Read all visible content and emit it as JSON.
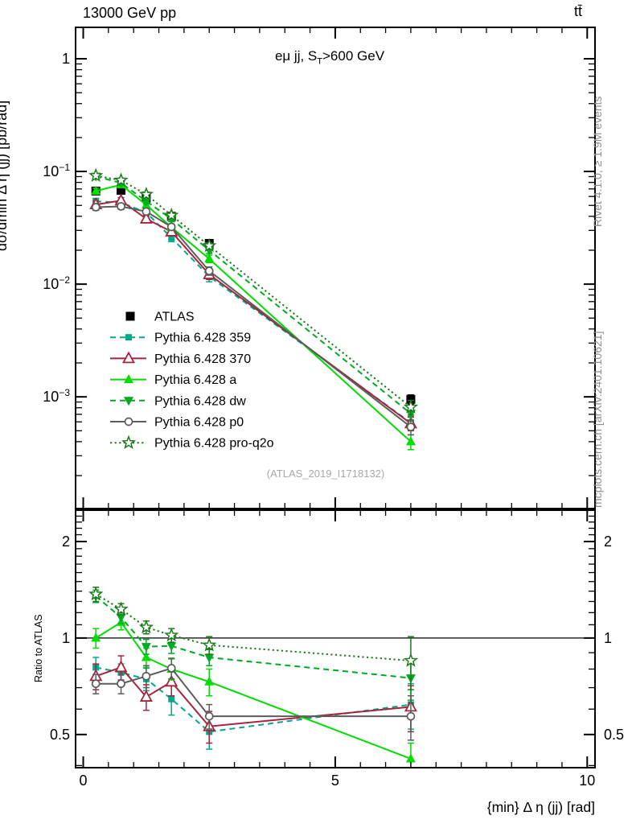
{
  "header": {
    "left": "13000 GeV pp",
    "right": "tt̄"
  },
  "title": {
    "pre": "eμ jj, S",
    "sub": "T",
    "post": ">600 GeV"
  },
  "watermark": "(ATLAS_2019_I1718132)",
  "side_notes": {
    "top": "Rivet 4.1.0, ≥ 1.9M events",
    "bottom": "mcplots.cern.ch [arXiv:2401.10621]"
  },
  "chart_data": {
    "type": "line",
    "xlabel": "{min} Δ η (jj) [rad]",
    "ylabel_main": "dσ/dmin Δ η (jj) [pb/rad]",
    "ylabel_ratio": "Ratio to ATLAS",
    "x_range": [
      -0.152,
      10.155
    ],
    "main_y_range": [
      0.000102,
      1.9
    ],
    "ratio_y_range": [
      0.394,
      2.505
    ],
    "ratio_reference": 1,
    "x_major_ticks": [
      {
        "v": 0,
        "t": "0"
      },
      {
        "v": 5,
        "t": "5"
      },
      {
        "v": 10,
        "t": "10"
      }
    ],
    "x_minor_step": 0.5,
    "main_y_ticks": [
      {
        "v": 1,
        "t": "1"
      },
      {
        "v": 0.1,
        "t": "10",
        "e": "−1"
      },
      {
        "v": 0.01,
        "t": "10",
        "e": "−2"
      },
      {
        "v": 0.001,
        "t": "10",
        "e": "−3"
      }
    ],
    "ratio_y_ticks": [
      {
        "v": 2,
        "t": "2"
      },
      {
        "v": 1,
        "t": "1"
      },
      {
        "v": 0.5,
        "t": "0.5"
      }
    ],
    "ratio_minor_ticks": [
      0.4,
      0.6,
      0.7,
      0.8,
      0.9,
      1.1,
      1.2,
      1.3,
      1.4,
      1.5,
      1.6,
      1.7,
      1.8,
      1.9,
      2.1,
      2.2,
      2.3,
      2.4,
      2.5
    ],
    "x": [
      0.25,
      0.75,
      1.25,
      1.75,
      2.5,
      6.5
    ],
    "series": [
      {
        "key": "atlas",
        "label": "ATLAS",
        "color": "#000000",
        "line": "none",
        "marker": "square",
        "y": [
          0.067,
          0.068,
          0.058,
          0.04,
          0.023,
          0.00095
        ],
        "yerr": [
          0.003,
          0.003,
          0.0028,
          0.002,
          0.0013,
          9e-05
        ]
      },
      {
        "key": "pythia-6428-359",
        "label": "Pythia 6.428 359",
        "color": "#00a98c",
        "line": "dashed",
        "marker": "square-sm",
        "y": [
          0.0543,
          0.053,
          0.0432,
          0.0258,
          0.0117,
          0.00059
        ],
        "yerr": [
          0.0035,
          0.003,
          0.0028,
          0.002,
          0.0012,
          8e-05
        ],
        "ratio": [
          0.81,
          0.78,
          0.745,
          0.645,
          0.51,
          0.62
        ],
        "ratio_err": [
          0.06,
          0.05,
          0.06,
          0.07,
          0.06,
          0.1
        ]
      },
      {
        "key": "pythia-6428-370",
        "label": "Pythia 6.428 370",
        "color": "#a3263c",
        "line": "solid",
        "marker": "triangle-open",
        "y": [
          0.0509,
          0.0551,
          0.038,
          0.0292,
          0.0122,
          0.00058
        ],
        "yerr": [
          0.0035,
          0.0035,
          0.0028,
          0.002,
          0.0012,
          8e-05
        ],
        "ratio": [
          0.76,
          0.81,
          0.655,
          0.73,
          0.53,
          0.61
        ],
        "ratio_err": [
          0.07,
          0.07,
          0.06,
          0.07,
          0.06,
          0.1
        ]
      },
      {
        "key": "pythia-6428-a",
        "label": "Pythia 6.428 a",
        "color": "#00dd00",
        "line": "solid",
        "marker": "triangle-up",
        "y": [
          0.067,
          0.0762,
          0.0505,
          0.032,
          0.0168,
          0.0004
        ],
        "yerr": [
          0.004,
          0.004,
          0.003,
          0.002,
          0.0013,
          6e-05
        ],
        "ratio": [
          1.0,
          1.12,
          0.87,
          0.8,
          0.73,
          0.42
        ],
        "ratio_err": [
          0.07,
          0.06,
          0.06,
          0.06,
          0.07,
          0.05
        ]
      },
      {
        "key": "pythia-6428-dw",
        "label": "Pythia 6.428 dw",
        "color": "#00aa22",
        "line": "dashed",
        "marker": "triangle-down",
        "y": [
          0.0905,
          0.0789,
          0.0545,
          0.0378,
          0.02,
          0.00071
        ],
        "yerr": [
          0.004,
          0.0035,
          0.003,
          0.002,
          0.0013,
          0.0001
        ],
        "ratio": [
          1.35,
          1.16,
          0.94,
          0.945,
          0.87,
          0.75
        ],
        "ratio_err": [
          0.06,
          0.05,
          0.05,
          0.05,
          0.05,
          0.11
        ]
      },
      {
        "key": "pythia-6428-p0",
        "label": "Pythia 6.428 p0",
        "color": "#5c5c5c",
        "line": "solid",
        "marker": "circle-open",
        "y": [
          0.0482,
          0.049,
          0.0441,
          0.0322,
          0.0131,
          0.00054
        ],
        "yerr": [
          0.003,
          0.003,
          0.0028,
          0.002,
          0.0011,
          8e-05
        ],
        "ratio": [
          0.72,
          0.72,
          0.76,
          0.805,
          0.57,
          0.57
        ],
        "ratio_err": [
          0.05,
          0.05,
          0.06,
          0.06,
          0.05,
          0.09
        ]
      },
      {
        "key": "pythia-6428-pro-q2o",
        "label": "Pythia 6.428 pro-q2o",
        "color": "#1d7a1d",
        "line": "dotted",
        "marker": "star-open",
        "y": [
          0.0918,
          0.0836,
          0.0626,
          0.0408,
          0.0219,
          0.00081
        ],
        "yerr": [
          0.004,
          0.0035,
          0.003,
          0.002,
          0.0013,
          0.00012
        ],
        "ratio": [
          1.37,
          1.23,
          1.08,
          1.02,
          0.95,
          0.85
        ],
        "ratio_err": [
          0.07,
          0.05,
          0.05,
          0.05,
          0.06,
          0.16
        ]
      }
    ]
  }
}
